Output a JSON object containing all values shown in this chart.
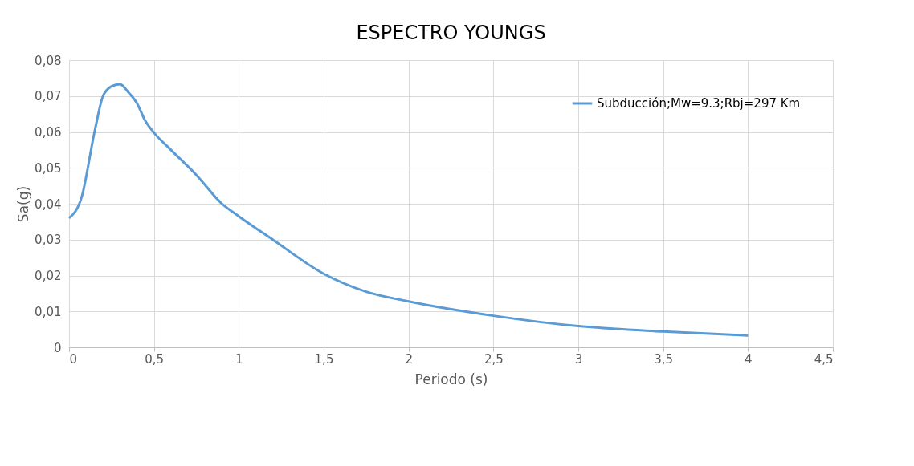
{
  "chart_data": {
    "type": "line",
    "title": "ESPECTRO YOUNGS",
    "xlabel": "Periodo (s)",
    "ylabel": "Sa(g)",
    "x": [
      0,
      0.075,
      0.15,
      0.2,
      0.25,
      0.3,
      0.35,
      0.4,
      0.45,
      0.5,
      0.6,
      0.75,
      0.9,
      1,
      1.2,
      1.5,
      1.75,
      2,
      2.5,
      3,
      3.5,
      4
    ],
    "series": [
      {
        "name": "Subducción;Mw=9.3;Rbj=297 Km",
        "color": "#5b9bd5",
        "values": [
          0.036,
          0.042,
          0.06,
          0.07,
          0.0727,
          0.0733,
          0.071,
          0.068,
          0.063,
          0.0598,
          0.055,
          0.048,
          0.04,
          0.0365,
          0.03,
          0.0205,
          0.0155,
          0.0128,
          0.0088,
          0.0059,
          0.0044,
          0.0033
        ]
      }
    ],
    "xlim": [
      0,
      4.5
    ],
    "ylim": [
      0,
      0.08
    ],
    "xticks": [
      0,
      {
        "value": 0.5,
        "label": "0,5"
      },
      1,
      {
        "value": 1.5,
        "label": "1,5"
      },
      2,
      {
        "value": 2.5,
        "label": "2,5"
      },
      3,
      {
        "value": 3.5,
        "label": "3,5"
      },
      4,
      {
        "value": 4.5,
        "label": "4,5"
      }
    ],
    "yticks": [
      0,
      {
        "value": 0.01,
        "label": "0,01"
      },
      {
        "value": 0.02,
        "label": "0,02"
      },
      {
        "value": 0.03,
        "label": "0,03"
      },
      {
        "value": 0.04,
        "label": "0,04"
      },
      {
        "value": 0.05,
        "label": "0,05"
      },
      {
        "value": 0.06,
        "label": "0,06"
      },
      {
        "value": 0.07,
        "label": "0,07"
      },
      {
        "value": 0.08,
        "label": "0,08"
      }
    ],
    "grid": true,
    "legend": "top right",
    "marker": "none",
    "line_style": "solid"
  }
}
